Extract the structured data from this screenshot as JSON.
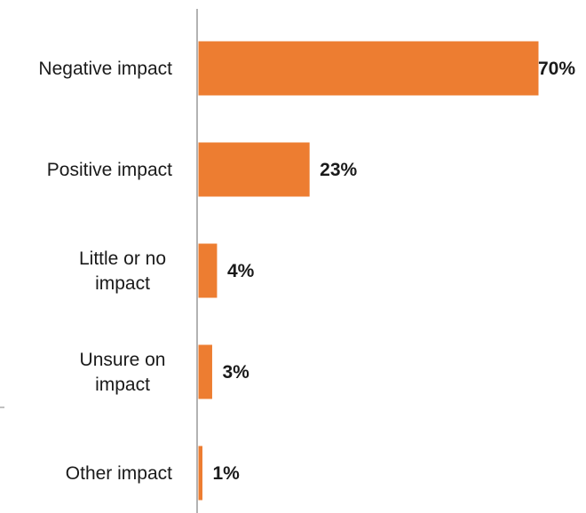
{
  "chart_data": {
    "type": "bar",
    "orientation": "horizontal",
    "categories": [
      [
        "Negative impact"
      ],
      [
        "Positive impact"
      ],
      [
        "Little or no",
        "impact"
      ],
      [
        "Unsure on",
        "impact"
      ],
      [
        "Other impact"
      ]
    ],
    "values": [
      70,
      23,
      4,
      3,
      1
    ],
    "value_labels": [
      "70%",
      "23%",
      "4%",
      "3%",
      "1%"
    ],
    "unit": "%",
    "title": "",
    "xlabel": "",
    "ylabel": "",
    "xlim": [
      0,
      70
    ],
    "grid": false,
    "legend": "none",
    "bar_color": "#ED7D31",
    "axis_color": "#808080"
  }
}
